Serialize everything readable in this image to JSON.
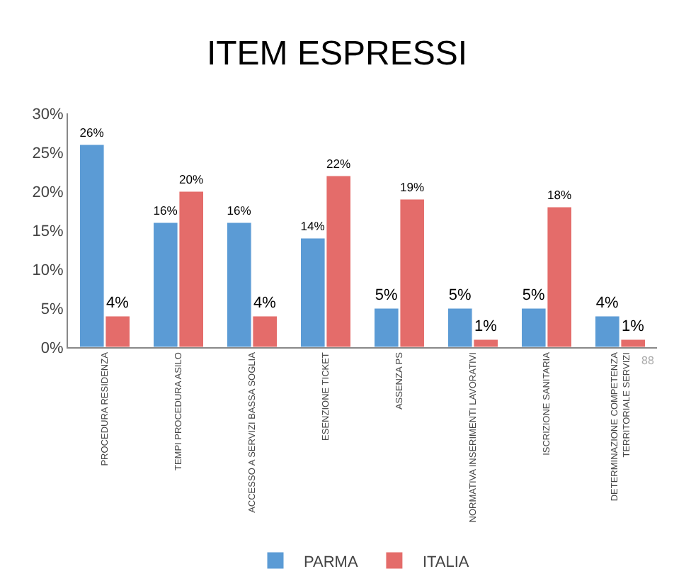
{
  "chart_data": {
    "type": "bar",
    "title": "ITEM ESPRESSI",
    "categories": [
      "PROCEDURA RESIDENZA",
      "TEMPI PROCEDURA ASILO",
      "ACCESSO A SERVIZI BASSA SOGLIA",
      "ESENZIONE TICKET",
      "ASSENZA PS",
      "NORMATIVA INSERIMENTI LAVORATIVI",
      "ISCRIZIONE SANITARIA",
      "DETERMINAZIONE COMPETENZA\nTERRITORIALE SERVIZI"
    ],
    "series": [
      {
        "name": "PARMA",
        "color": "#5b9bd5",
        "values": [
          26,
          16,
          16,
          14,
          5,
          5,
          5,
          4
        ],
        "value_labels": [
          "26%",
          "16%",
          "16%",
          "14%",
          "5%",
          "5%",
          "5%",
          "4%"
        ]
      },
      {
        "name": "ITALIA",
        "color": "#e46c6a",
        "values": [
          4,
          20,
          4,
          22,
          19,
          1,
          18,
          1
        ],
        "value_labels": [
          "4%",
          "20%",
          "4%",
          "22%",
          "19%",
          "1%",
          "18%",
          "1%"
        ]
      }
    ],
    "ylim": [
      0,
      30
    ],
    "yticks": [
      {
        "value": 0,
        "label": "0%"
      },
      {
        "value": 5,
        "label": "5%"
      },
      {
        "value": 10,
        "label": "10%"
      },
      {
        "value": 15,
        "label": "15%"
      },
      {
        "value": 20,
        "label": "20%"
      },
      {
        "value": 25,
        "label": "25%"
      },
      {
        "value": 30,
        "label": "30%"
      }
    ],
    "legend": "bottom",
    "grid": false,
    "annotations": [
      "88"
    ]
  }
}
